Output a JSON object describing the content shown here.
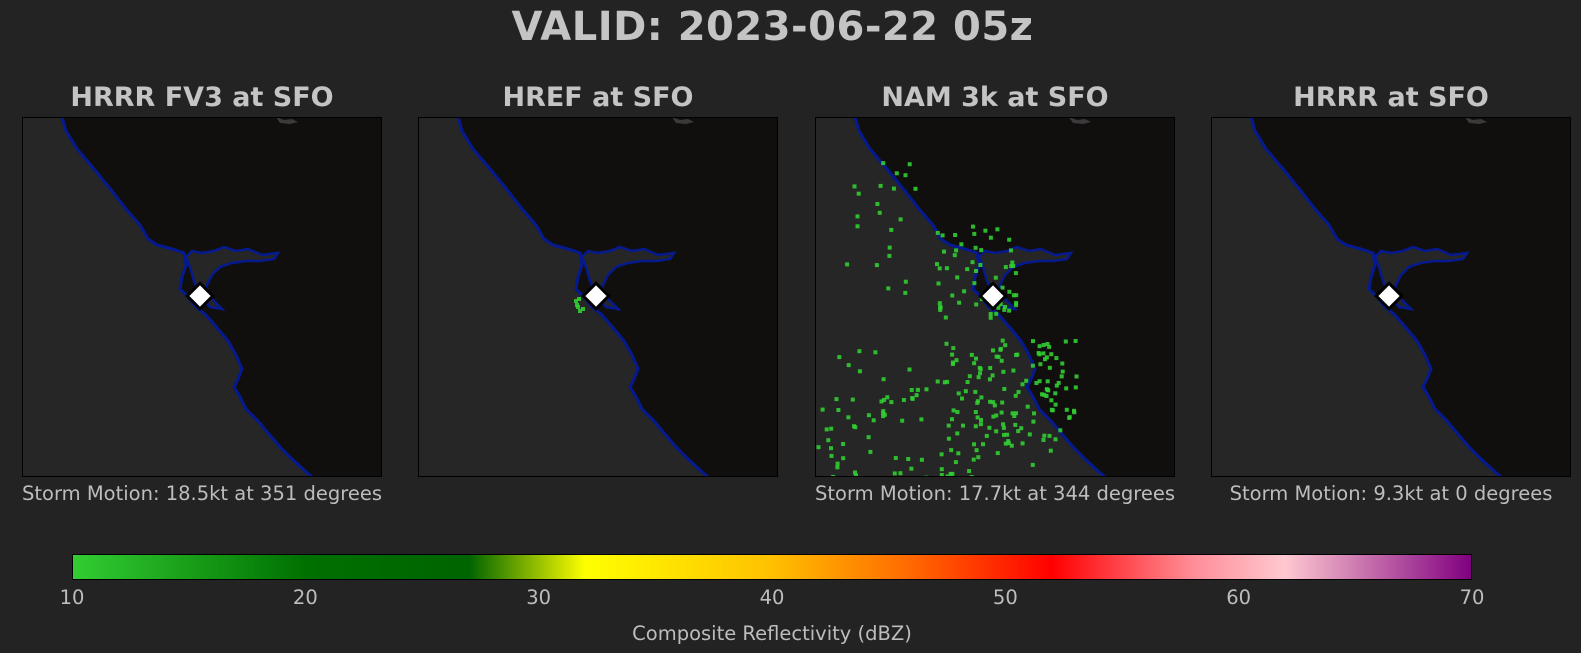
{
  "title": "VALID: 2023-06-22 05z",
  "colors": {
    "background": "#232323",
    "land": "#110e0e",
    "ocean": "#262626",
    "coastline": "#061a8f",
    "echo": "#32cd32",
    "marker": "#ffffff"
  },
  "panels": [
    {
      "title": "HRRR FV3 at SFO",
      "storm_motion": "Storm Motion: 18.5kt at 351 degrees",
      "echo_coverage": "none"
    },
    {
      "title": "HREF at SFO",
      "storm_motion": "",
      "echo_coverage": "few"
    },
    {
      "title": "NAM 3k at SFO",
      "storm_motion": "Storm Motion: 17.7kt at 344 degrees",
      "echo_coverage": "scattered"
    },
    {
      "title": "HRRR at SFO",
      "storm_motion": "Storm Motion: 9.3kt at 0 degrees",
      "echo_coverage": "none"
    }
  ],
  "station_marker": {
    "name": "SFO",
    "icon": "white-diamond-icon"
  },
  "colorbar": {
    "label": "Composite Reflectivity (dBZ)",
    "min": 10,
    "max": 70,
    "ticks": [
      "10",
      "20",
      "30",
      "40",
      "50",
      "60",
      "70"
    ],
    "tick_values": [
      10,
      20,
      30,
      40,
      50,
      60,
      70
    ],
    "stops": [
      {
        "value": 10,
        "color": "#32cd32"
      },
      {
        "value": 20,
        "color": "#007000"
      },
      {
        "value": 27,
        "color": "#006400"
      },
      {
        "value": 32,
        "color": "#ffff00"
      },
      {
        "value": 40,
        "color": "#ffc000"
      },
      {
        "value": 46,
        "color": "#ff6800"
      },
      {
        "value": 52,
        "color": "#ff0000"
      },
      {
        "value": 58,
        "color": "#ff8c96"
      },
      {
        "value": 62,
        "color": "#ffc8d0"
      },
      {
        "value": 70,
        "color": "#800080"
      }
    ]
  }
}
